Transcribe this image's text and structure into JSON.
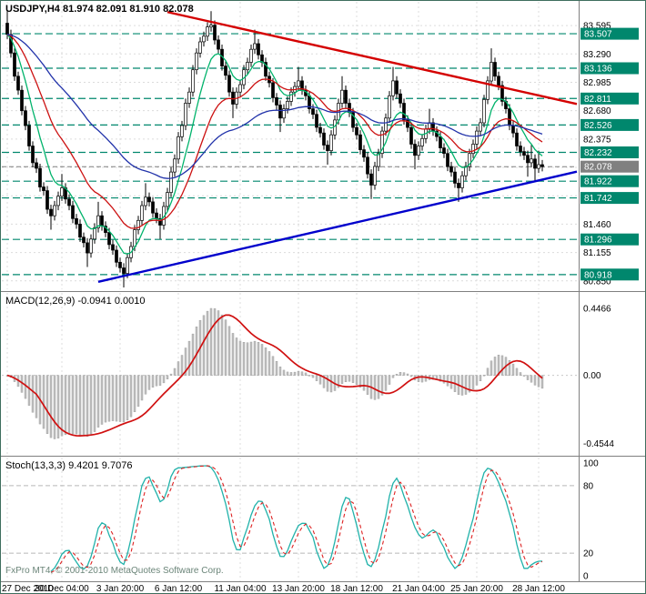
{
  "window": {
    "title": "USDJPY,H4 81.974 82.091 81.910 82.078"
  },
  "footer": {
    "copyright": "FxPro MT4, © 2001-2010 MetaQuotes Software Corp."
  },
  "colors": {
    "level": "#00876d",
    "current": "#808080",
    "bull": "#ffffff",
    "bear": "#000000",
    "macd_hist": "#c0c0c0",
    "macd_signal": "#d01010",
    "stoch_main": "#20b2aa",
    "stoch_signal": "#dd2222",
    "grid": "#dcdcdc",
    "tag_text": "#ffffff"
  },
  "chart_data": {
    "type": "candlestick",
    "symbol": "USDJPY",
    "timeframe": "H4",
    "ohlc_display": {
      "open": "81.974",
      "high": "82.091",
      "low": "81.910",
      "close": "82.078"
    },
    "x_ticks": {
      "labels": [
        "27 Dec 2010",
        "30 Dec 04:00",
        "3 Jan 20:00",
        "6 Jan 12:00",
        "11 Jan 04:00",
        "13 Jan 20:00",
        "18 Jan 12:00",
        "21 Jan 04:00",
        "25 Jan 20:00",
        "28 Jan 12:00"
      ],
      "bar_indices": [
        0,
        15,
        31,
        47,
        64,
        80,
        96,
        113,
        129,
        146
      ]
    },
    "price_axis": {
      "ticks": [
        83.595,
        83.29,
        82.985,
        82.68,
        82.375,
        81.46,
        81.155,
        80.85
      ],
      "grid_base": 80.85,
      "grid_step": 0.305,
      "grid_count": 10,
      "pane_max": 83.85,
      "pane_min": 80.76
    },
    "closes": [
      83.5,
      83.3,
      83.05,
      82.9,
      82.68,
      82.52,
      82.3,
      82.12,
      82.06,
      81.86,
      81.82,
      81.62,
      81.55,
      81.66,
      81.76,
      81.85,
      81.73,
      81.66,
      81.52,
      81.46,
      81.32,
      81.26,
      81.15,
      81.3,
      81.42,
      81.55,
      81.44,
      81.37,
      81.24,
      81.18,
      81.05,
      80.99,
      80.93,
      81.1,
      81.22,
      81.4,
      81.5,
      81.66,
      81.75,
      81.7,
      81.58,
      81.52,
      81.45,
      81.65,
      81.8,
      82.02,
      82.16,
      82.4,
      82.52,
      82.76,
      82.88,
      83.12,
      83.3,
      83.42,
      83.48,
      83.58,
      83.6,
      83.44,
      83.34,
      83.16,
      83.06,
      82.88,
      82.75,
      82.88,
      82.96,
      83.12,
      83.2,
      83.34,
      83.4,
      83.28,
      83.2,
      83.05,
      82.98,
      82.82,
      82.74,
      82.6,
      82.7,
      82.78,
      82.88,
      82.94,
      83.0,
      82.9,
      82.84,
      82.7,
      82.64,
      82.5,
      82.44,
      82.31,
      82.25,
      82.42,
      82.58,
      82.76,
      82.9,
      82.76,
      82.66,
      82.5,
      82.42,
      82.26,
      82.18,
      82.0,
      81.88,
      82.08,
      82.22,
      82.46,
      82.6,
      82.84,
      83.0,
      82.86,
      82.76,
      82.58,
      82.5,
      82.32,
      82.2,
      82.3,
      82.38,
      82.48,
      82.55,
      82.46,
      82.4,
      82.28,
      82.22,
      82.08,
      82.02,
      81.9,
      81.85,
      81.98,
      82.08,
      82.22,
      82.32,
      82.46,
      82.55,
      82.8,
      83.0,
      83.2,
      83.05,
      82.95,
      82.78,
      82.7,
      82.52,
      82.44,
      82.3,
      82.24,
      82.2,
      82.12,
      82.16,
      82.06,
      82.1,
      82.078
    ],
    "levels": [
      83.507,
      83.136,
      82.811,
      82.526,
      82.232,
      81.922,
      81.742,
      81.296,
      80.918
    ],
    "current_price": 82.078,
    "trendlines": [
      {
        "name": "descending-trendline",
        "color": "#d40000",
        "from": [
          44,
          83.74
        ],
        "to": [
          176,
          82.58
        ]
      },
      {
        "name": "ascending-trendline",
        "color": "#0000cc",
        "from": [
          25,
          80.84
        ],
        "to": [
          176,
          82.2
        ]
      }
    ],
    "moving_averages": [
      {
        "period": 8,
        "color": "#00b36b"
      },
      {
        "period": 21,
        "color": "#cc1111"
      },
      {
        "period": 55,
        "color": "#2233aa"
      }
    ],
    "macd": {
      "label": "MACD(12,26,9) -0.0941 0.0010",
      "fast": 12,
      "slow": 26,
      "signal": 9,
      "axis_labels": [
        "0.4466",
        "0.00",
        "-0.4544"
      ],
      "axis_values": [
        0.4466,
        0,
        -0.4544
      ],
      "display_max": 0.4466,
      "range": [
        -0.53,
        0.55
      ]
    },
    "stoch": {
      "label": "Stoch(13,3,3) 9.4201 9.7076",
      "k": 13,
      "slowing": 3,
      "d": 3,
      "axis_labels": [
        "100",
        "80",
        "20",
        "0"
      ],
      "axis_values": [
        100,
        80,
        20,
        0
      ],
      "levels": [
        80,
        20
      ],
      "range": [
        -5,
        105
      ]
    }
  }
}
